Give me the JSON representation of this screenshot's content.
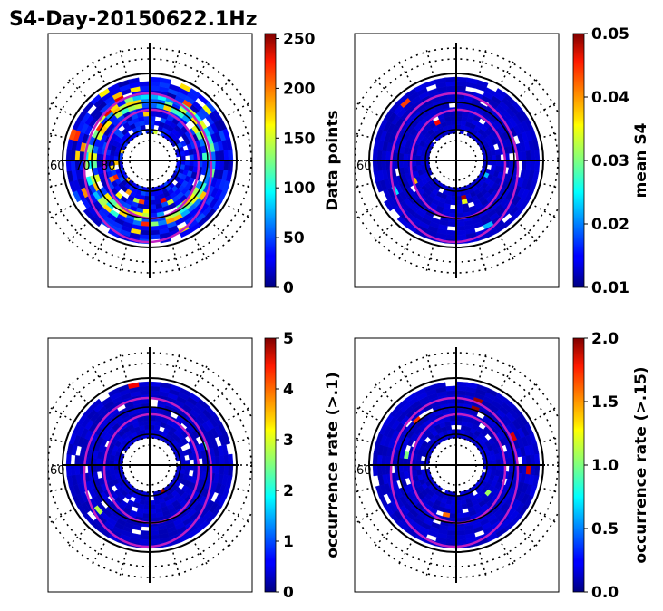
{
  "chart_data": {
    "title": "S4-Day-20150622.1Hz",
    "type": "heatmap",
    "projection": "polar",
    "panels": [
      {
        "id": "data-points",
        "cbar_label": "Data points",
        "cbar_range": [
          0,
          255
        ],
        "cbar_ticks": [
          {
            "value": 0,
            "label": "0"
          },
          {
            "value": 50,
            "label": "50"
          },
          {
            "value": 100,
            "label": "100"
          },
          {
            "value": 150,
            "label": "150"
          },
          {
            "value": 200,
            "label": "200"
          },
          {
            "value": 250,
            "label": "250"
          }
        ],
        "lat_labels": [
          "60",
          "70",
          "80"
        ],
        "variant": "counts"
      },
      {
        "id": "mean-s4",
        "cbar_label": "mean S4",
        "cbar_range": [
          0.01,
          0.05
        ],
        "cbar_ticks": [
          {
            "value": 0.01,
            "label": "0.01"
          },
          {
            "value": 0.02,
            "label": "0.02"
          },
          {
            "value": 0.03,
            "label": "0.03"
          },
          {
            "value": 0.04,
            "label": "0.04"
          },
          {
            "value": 0.05,
            "label": "0.05"
          }
        ],
        "lat_labels": [
          "60"
        ],
        "variant": "mean"
      },
      {
        "id": "occurrence-rate-01",
        "cbar_label": "occurrence rate (>.1)",
        "cbar_range": [
          0,
          5
        ],
        "cbar_ticks": [
          {
            "value": 0,
            "label": "0"
          },
          {
            "value": 1,
            "label": "1"
          },
          {
            "value": 2,
            "label": "2"
          },
          {
            "value": 3,
            "label": "3"
          },
          {
            "value": 4,
            "label": "4"
          },
          {
            "value": 5,
            "label": "5"
          }
        ],
        "lat_labels": [
          "60"
        ],
        "variant": "occ1"
      },
      {
        "id": "occurrence-rate-015",
        "cbar_label": "occurrence rate (>.15)",
        "cbar_range": [
          0,
          2
        ],
        "cbar_ticks": [
          {
            "value": 0.0,
            "label": "0.0"
          },
          {
            "value": 0.5,
            "label": "0.5"
          },
          {
            "value": 1.0,
            "label": "1.0"
          },
          {
            "value": 1.5,
            "label": "1.5"
          },
          {
            "value": 2.0,
            "label": "2.0"
          }
        ],
        "lat_labels": [
          "60"
        ],
        "variant": "occ2"
      }
    ],
    "colors": {
      "grid": "#000000",
      "oval": "#c21fc2",
      "colormap": "jet"
    }
  }
}
